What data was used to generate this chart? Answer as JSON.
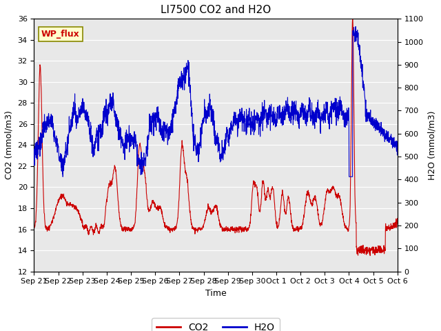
{
  "title": "LI7500 CO2 and H2O",
  "xlabel": "Time",
  "ylabel_left": "CO2 (mmol/m3)",
  "ylabel_right": "H2O (mmol/m3)",
  "xlim_days": [
    0,
    15
  ],
  "ylim_left": [
    12,
    36
  ],
  "ylim_right": [
    0,
    1100
  ],
  "yticks_left": [
    12,
    14,
    16,
    18,
    20,
    22,
    24,
    26,
    28,
    30,
    32,
    34,
    36
  ],
  "yticks_right": [
    0,
    100,
    200,
    300,
    400,
    500,
    600,
    700,
    800,
    900,
    1000,
    1100
  ],
  "xtick_labels": [
    "Sep 21",
    "Sep 22",
    "Sep 23",
    "Sep 24",
    "Sep 25",
    "Sep 26",
    "Sep 27",
    "Sep 28",
    "Sep 29",
    "Sep 30",
    "Oct 1",
    "Oct 2",
    "Oct 3",
    "Oct 4",
    "Oct 5",
    "Oct 6"
  ],
  "co2_color": "#cc0000",
  "h2o_color": "#0000cc",
  "legend_label_co2": "CO2",
  "legend_label_h2o": "H2O",
  "annotation_text": "WP_flux",
  "bg_color": "#e8e8e8",
  "title_fontsize": 11,
  "axis_fontsize": 9,
  "tick_fontsize": 8,
  "legend_fontsize": 10,
  "linewidth": 0.8
}
